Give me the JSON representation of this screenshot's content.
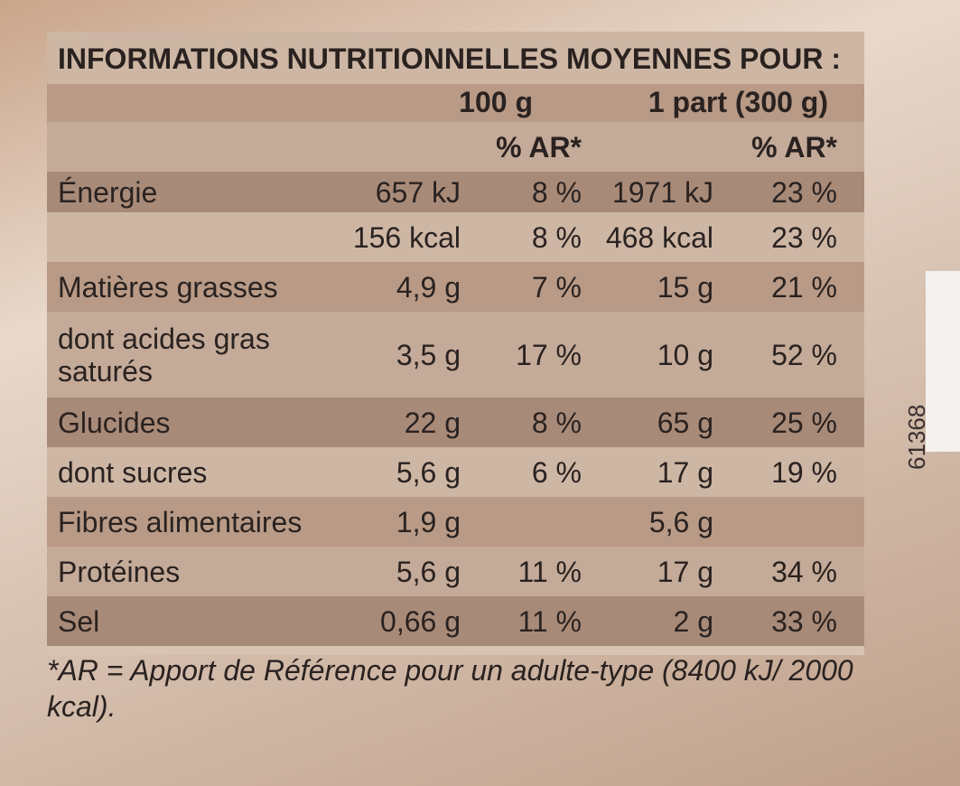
{
  "title": "INFORMATIONS NUTRITIONNELLES MOYENNES POUR :",
  "header": {
    "portions": [
      "100 g",
      "1 part (300 g)"
    ],
    "ar": [
      "% AR*",
      "% AR*"
    ]
  },
  "rows": [
    [
      "Énergie",
      "657 kJ",
      "8 %",
      "1971 kJ",
      "23 %"
    ],
    [
      null,
      "156 kcal",
      "8 %",
      "468 kcal",
      "23 %"
    ],
    [
      "Matières grasses",
      "4,9 g",
      "7 %",
      "15 g",
      "21 %"
    ],
    [
      "dont acides gras saturés",
      "3,5 g",
      "17 %",
      "10 g",
      "52 %"
    ],
    [
      "Glucides",
      "22 g",
      "8 %",
      "65 g",
      "25 %"
    ],
    [
      "dont sucres",
      "5,6 g",
      "6 %",
      "17 g",
      "19 %"
    ],
    [
      "Fibres alimentaires",
      "1,9 g",
      null,
      "5,6 g",
      null
    ],
    [
      "Protéines",
      "5,6 g",
      "11 %",
      "17 g",
      "34 %"
    ],
    [
      "Sel",
      "0,66 g",
      "11 %",
      "2 g",
      "33 %"
    ]
  ],
  "footnote": "*AR = Apport de Référence pour un adulte-type (8400 kJ/ 2000 kcal).",
  "side_code": "61368"
}
